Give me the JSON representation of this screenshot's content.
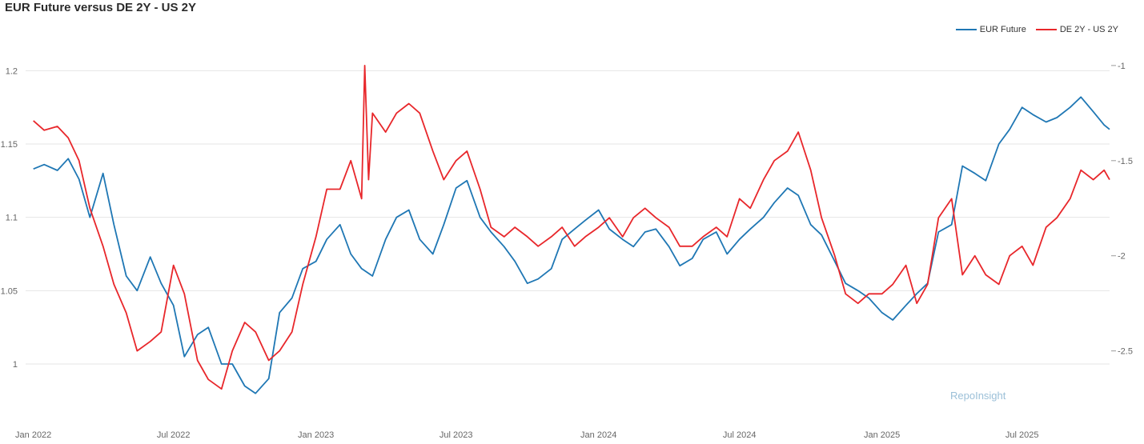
{
  "title": "EUR Future versus DE 2Y - US 2Y",
  "watermark": "RepoInsight",
  "colors": {
    "eur": "#1f77b4",
    "spread": "#e8272b",
    "grid": "#e6e6e6"
  },
  "chart_data": {
    "type": "line",
    "title": "EUR Future versus DE 2Y - US 2Y",
    "x_range": [
      "2021-12-22",
      "2025-10-22"
    ],
    "x_ticks": [
      {
        "date": "2022-01-01",
        "label": "Jan 2022"
      },
      {
        "date": "2022-07-01",
        "label": "Jul 2022"
      },
      {
        "date": "2023-01-01",
        "label": "Jan 2023"
      },
      {
        "date": "2023-07-01",
        "label": "Jul 2023"
      },
      {
        "date": "2024-01-01",
        "label": "Jan 2024"
      },
      {
        "date": "2024-07-01",
        "label": "Jul 2024"
      },
      {
        "date": "2025-01-01",
        "label": "Jan 2025"
      },
      {
        "date": "2025-07-01",
        "label": "Jul 2025"
      }
    ],
    "y_left": {
      "ticks": [
        1,
        1.05,
        1.1,
        1.15,
        1.2
      ],
      "tick_labels": [
        "1",
        "1.05",
        "1.1",
        "1.15",
        "1.2"
      ],
      "range": [
        0.97,
        1.21
      ]
    },
    "y_right": {
      "ticks": [
        -1,
        -1.5,
        -2,
        -2.5
      ],
      "tick_labels": [
        "-1",
        "-1.5",
        "-2",
        "-2.5"
      ],
      "range": [
        -2.8,
        -0.95
      ]
    },
    "grid": true,
    "legend_position": "top-right",
    "series": [
      {
        "name": "EUR Future",
        "axis": "left",
        "color": "#1f77b4",
        "points": [
          [
            "2022-01-01",
            1.133
          ],
          [
            "2022-01-15",
            1.136
          ],
          [
            "2022-02-01",
            1.132
          ],
          [
            "2022-02-15",
            1.14
          ],
          [
            "2022-03-01",
            1.126
          ],
          [
            "2022-03-15",
            1.1
          ],
          [
            "2022-04-01",
            1.13
          ],
          [
            "2022-04-15",
            1.095
          ],
          [
            "2022-05-01",
            1.06
          ],
          [
            "2022-05-15",
            1.05
          ],
          [
            "2022-06-01",
            1.073
          ],
          [
            "2022-06-15",
            1.055
          ],
          [
            "2022-07-01",
            1.04
          ],
          [
            "2022-07-15",
            1.005
          ],
          [
            "2022-08-01",
            1.02
          ],
          [
            "2022-08-15",
            1.025
          ],
          [
            "2022-09-01",
            1.0
          ],
          [
            "2022-09-15",
            1.0
          ],
          [
            "2022-10-01",
            0.985
          ],
          [
            "2022-10-15",
            0.98
          ],
          [
            "2022-11-01",
            0.99
          ],
          [
            "2022-11-15",
            1.035
          ],
          [
            "2022-12-01",
            1.045
          ],
          [
            "2022-12-15",
            1.065
          ],
          [
            "2023-01-01",
            1.07
          ],
          [
            "2023-01-15",
            1.085
          ],
          [
            "2023-02-01",
            1.095
          ],
          [
            "2023-02-15",
            1.075
          ],
          [
            "2023-03-01",
            1.065
          ],
          [
            "2023-03-15",
            1.06
          ],
          [
            "2023-04-01",
            1.085
          ],
          [
            "2023-04-15",
            1.1
          ],
          [
            "2023-05-01",
            1.105
          ],
          [
            "2023-05-15",
            1.085
          ],
          [
            "2023-06-01",
            1.075
          ],
          [
            "2023-06-15",
            1.095
          ],
          [
            "2023-07-01",
            1.12
          ],
          [
            "2023-07-15",
            1.125
          ],
          [
            "2023-08-01",
            1.1
          ],
          [
            "2023-08-15",
            1.09
          ],
          [
            "2023-09-01",
            1.08
          ],
          [
            "2023-09-15",
            1.07
          ],
          [
            "2023-10-01",
            1.055
          ],
          [
            "2023-10-15",
            1.058
          ],
          [
            "2023-11-01",
            1.065
          ],
          [
            "2023-11-15",
            1.085
          ],
          [
            "2023-12-01",
            1.092
          ],
          [
            "2023-12-15",
            1.098
          ],
          [
            "2024-01-01",
            1.105
          ],
          [
            "2024-01-15",
            1.092
          ],
          [
            "2024-02-01",
            1.085
          ],
          [
            "2024-02-15",
            1.08
          ],
          [
            "2024-03-01",
            1.09
          ],
          [
            "2024-03-15",
            1.092
          ],
          [
            "2024-04-01",
            1.08
          ],
          [
            "2024-04-15",
            1.067
          ],
          [
            "2024-05-01",
            1.072
          ],
          [
            "2024-05-15",
            1.085
          ],
          [
            "2024-06-01",
            1.09
          ],
          [
            "2024-06-15",
            1.075
          ],
          [
            "2024-07-01",
            1.085
          ],
          [
            "2024-07-15",
            1.092
          ],
          [
            "2024-08-01",
            1.1
          ],
          [
            "2024-08-15",
            1.11
          ],
          [
            "2024-09-01",
            1.12
          ],
          [
            "2024-09-15",
            1.115
          ],
          [
            "2024-10-01",
            1.095
          ],
          [
            "2024-10-15",
            1.088
          ],
          [
            "2024-11-01",
            1.07
          ],
          [
            "2024-11-15",
            1.055
          ],
          [
            "2024-12-01",
            1.05
          ],
          [
            "2024-12-15",
            1.045
          ],
          [
            "2025-01-01",
            1.035
          ],
          [
            "2025-01-15",
            1.03
          ],
          [
            "2025-02-01",
            1.04
          ],
          [
            "2025-02-15",
            1.048
          ],
          [
            "2025-03-01",
            1.055
          ],
          [
            "2025-03-15",
            1.09
          ],
          [
            "2025-04-01",
            1.095
          ],
          [
            "2025-04-15",
            1.135
          ],
          [
            "2025-05-01",
            1.13
          ],
          [
            "2025-05-15",
            1.125
          ],
          [
            "2025-06-01",
            1.15
          ],
          [
            "2025-06-15",
            1.16
          ],
          [
            "2025-07-01",
            1.175
          ],
          [
            "2025-07-15",
            1.17
          ],
          [
            "2025-08-01",
            1.165
          ],
          [
            "2025-08-15",
            1.168
          ],
          [
            "2025-09-01",
            1.175
          ],
          [
            "2025-09-15",
            1.182
          ],
          [
            "2025-10-01",
            1.172
          ],
          [
            "2025-10-15",
            1.163
          ],
          [
            "2025-10-22",
            1.16
          ]
        ]
      },
      {
        "name": "DE 2Y - US 2Y",
        "axis": "right",
        "color": "#e8272b",
        "points": [
          [
            "2022-01-01",
            -1.29
          ],
          [
            "2022-01-15",
            -1.34
          ],
          [
            "2022-02-01",
            -1.32
          ],
          [
            "2022-02-15",
            -1.38
          ],
          [
            "2022-03-01",
            -1.5
          ],
          [
            "2022-03-15",
            -1.75
          ],
          [
            "2022-04-01",
            -1.95
          ],
          [
            "2022-04-15",
            -2.15
          ],
          [
            "2022-05-01",
            -2.3
          ],
          [
            "2022-05-15",
            -2.5
          ],
          [
            "2022-06-01",
            -2.45
          ],
          [
            "2022-06-15",
            -2.4
          ],
          [
            "2022-07-01",
            -2.05
          ],
          [
            "2022-07-15",
            -2.2
          ],
          [
            "2022-08-01",
            -2.55
          ],
          [
            "2022-08-15",
            -2.65
          ],
          [
            "2022-09-01",
            -2.7
          ],
          [
            "2022-09-15",
            -2.5
          ],
          [
            "2022-10-01",
            -2.35
          ],
          [
            "2022-10-15",
            -2.4
          ],
          [
            "2022-11-01",
            -2.55
          ],
          [
            "2022-11-15",
            -2.5
          ],
          [
            "2022-12-01",
            -2.4
          ],
          [
            "2022-12-15",
            -2.15
          ],
          [
            "2023-01-01",
            -1.9
          ],
          [
            "2023-01-15",
            -1.65
          ],
          [
            "2023-02-01",
            -1.65
          ],
          [
            "2023-02-15",
            -1.5
          ],
          [
            "2023-03-01",
            -1.7
          ],
          [
            "2023-03-05",
            -1.0
          ],
          [
            "2023-03-10",
            -1.6
          ],
          [
            "2023-03-15",
            -1.25
          ],
          [
            "2023-04-01",
            -1.35
          ],
          [
            "2023-04-15",
            -1.25
          ],
          [
            "2023-05-01",
            -1.2
          ],
          [
            "2023-05-15",
            -1.25
          ],
          [
            "2023-06-01",
            -1.45
          ],
          [
            "2023-06-15",
            -1.6
          ],
          [
            "2023-07-01",
            -1.5
          ],
          [
            "2023-07-15",
            -1.45
          ],
          [
            "2023-08-01",
            -1.65
          ],
          [
            "2023-08-15",
            -1.85
          ],
          [
            "2023-09-01",
            -1.9
          ],
          [
            "2023-09-15",
            -1.85
          ],
          [
            "2023-10-01",
            -1.9
          ],
          [
            "2023-10-15",
            -1.95
          ],
          [
            "2023-11-01",
            -1.9
          ],
          [
            "2023-11-15",
            -1.85
          ],
          [
            "2023-12-01",
            -1.95
          ],
          [
            "2023-12-15",
            -1.9
          ],
          [
            "2024-01-01",
            -1.85
          ],
          [
            "2024-01-15",
            -1.8
          ],
          [
            "2024-02-01",
            -1.9
          ],
          [
            "2024-02-15",
            -1.8
          ],
          [
            "2024-03-01",
            -1.75
          ],
          [
            "2024-03-15",
            -1.8
          ],
          [
            "2024-04-01",
            -1.85
          ],
          [
            "2024-04-15",
            -1.95
          ],
          [
            "2024-05-01",
            -1.95
          ],
          [
            "2024-05-15",
            -1.9
          ],
          [
            "2024-06-01",
            -1.85
          ],
          [
            "2024-06-15",
            -1.9
          ],
          [
            "2024-07-01",
            -1.7
          ],
          [
            "2024-07-15",
            -1.75
          ],
          [
            "2024-08-01",
            -1.6
          ],
          [
            "2024-08-15",
            -1.5
          ],
          [
            "2024-09-01",
            -1.45
          ],
          [
            "2024-09-15",
            -1.35
          ],
          [
            "2024-10-01",
            -1.55
          ],
          [
            "2024-10-15",
            -1.8
          ],
          [
            "2024-11-01",
            -2.0
          ],
          [
            "2024-11-15",
            -2.2
          ],
          [
            "2024-12-01",
            -2.25
          ],
          [
            "2024-12-15",
            -2.2
          ],
          [
            "2025-01-01",
            -2.2
          ],
          [
            "2025-01-15",
            -2.15
          ],
          [
            "2025-02-01",
            -2.05
          ],
          [
            "2025-02-15",
            -2.25
          ],
          [
            "2025-03-01",
            -2.15
          ],
          [
            "2025-03-15",
            -1.8
          ],
          [
            "2025-04-01",
            -1.7
          ],
          [
            "2025-04-15",
            -2.1
          ],
          [
            "2025-05-01",
            -2.0
          ],
          [
            "2025-05-15",
            -2.1
          ],
          [
            "2025-06-01",
            -2.15
          ],
          [
            "2025-06-15",
            -2.0
          ],
          [
            "2025-07-01",
            -1.95
          ],
          [
            "2025-07-15",
            -2.05
          ],
          [
            "2025-08-01",
            -1.85
          ],
          [
            "2025-08-15",
            -1.8
          ],
          [
            "2025-09-01",
            -1.7
          ],
          [
            "2025-09-15",
            -1.55
          ],
          [
            "2025-10-01",
            -1.6
          ],
          [
            "2025-10-15",
            -1.55
          ],
          [
            "2025-10-22",
            -1.6
          ]
        ]
      }
    ]
  }
}
